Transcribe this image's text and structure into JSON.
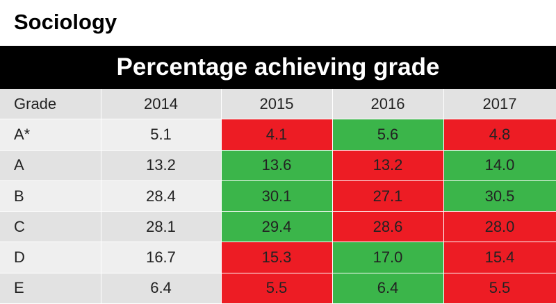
{
  "subject": "Sociology",
  "title": "Percentage achieving grade",
  "colors": {
    "increase": "#3bb54a",
    "decrease": "#ed1c24"
  },
  "chart_data": {
    "type": "table",
    "columns": [
      "Grade",
      "2014",
      "2015",
      "2016",
      "2017"
    ],
    "rows": [
      {
        "grade": "A*",
        "values": [
          "5.1",
          "4.1",
          "5.6",
          "4.8"
        ],
        "status": [
          "none",
          "down",
          "up",
          "down"
        ]
      },
      {
        "grade": "A",
        "values": [
          "13.2",
          "13.6",
          "13.2",
          "14.0"
        ],
        "status": [
          "none",
          "up",
          "down",
          "up"
        ]
      },
      {
        "grade": "B",
        "values": [
          "28.4",
          "30.1",
          "27.1",
          "30.5"
        ],
        "status": [
          "none",
          "up",
          "down",
          "up"
        ]
      },
      {
        "grade": "C",
        "values": [
          "28.1",
          "29.4",
          "28.6",
          "28.0"
        ],
        "status": [
          "none",
          "up",
          "down",
          "down"
        ]
      },
      {
        "grade": "D",
        "values": [
          "16.7",
          "15.3",
          "17.0",
          "15.4"
        ],
        "status": [
          "none",
          "down",
          "up",
          "down"
        ]
      },
      {
        "grade": "E",
        "values": [
          "6.4",
          "5.5",
          "6.4",
          "5.5"
        ],
        "status": [
          "none",
          "down",
          "up",
          "down"
        ]
      }
    ]
  }
}
